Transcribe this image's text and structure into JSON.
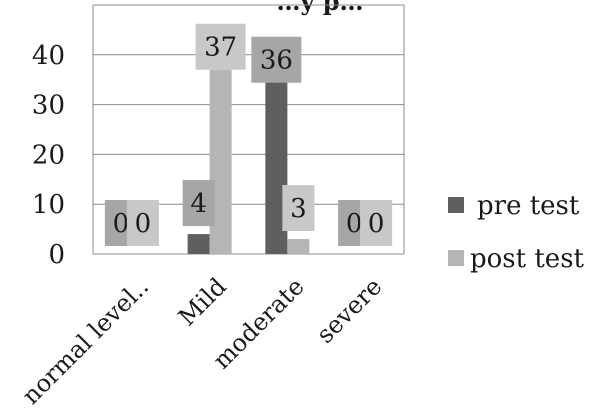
{
  "chart_data": {
    "type": "bar",
    "title": "…y p…",
    "categories": [
      "normal level..",
      "Mild",
      "moderate",
      "severe"
    ],
    "series": [
      {
        "name": "pre test",
        "values": [
          0,
          4,
          36,
          0
        ]
      },
      {
        "name": "post test",
        "values": [
          0,
          37,
          3,
          0
        ]
      }
    ],
    "ylim": [
      0,
      50
    ],
    "yticks": [
      0,
      10,
      20,
      30,
      40
    ],
    "grid": true,
    "legend": "right",
    "colors": {
      "pre test": "#5f5f5f",
      "post test": "#b5b5b5",
      "pre_label_bg": "#a6a6a6",
      "post_label_bg": "#c8c8c8"
    }
  }
}
